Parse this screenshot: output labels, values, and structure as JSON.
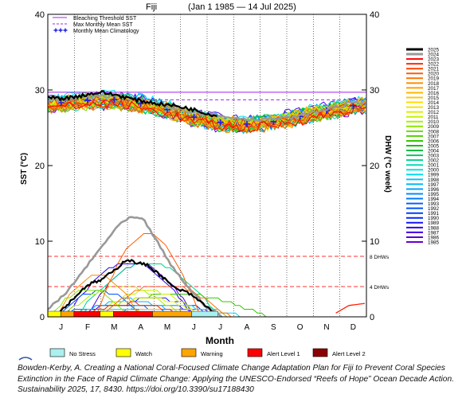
{
  "chart_data": {
    "type": "line",
    "title": {
      "location": "Fiji",
      "date_range": "(Jan 1 1985 — 14 Jul 2025)"
    },
    "ylabel_left": "SST (°C)",
    "ylabel_right": "DHW (°C week)",
    "xlabel": "Month",
    "x_ticks": [
      "J",
      "F",
      "M",
      "A",
      "M",
      "J",
      "J",
      "A",
      "S",
      "O",
      "N",
      "D"
    ],
    "ylim": [
      0,
      40
    ],
    "y_ticks": [
      0,
      10,
      20,
      30,
      40
    ],
    "grid": "vertical dotted lines at month boundaries",
    "thresholds": {
      "bleaching_threshold_sst": 29.7,
      "max_monthly_mean_sst": 28.7,
      "dhw_8_label": "8 DHWs",
      "dhw_8_value": 8,
      "dhw_4_label": "4 DHWs",
      "dhw_4_value": 4
    },
    "legend": [
      {
        "label": "Bleaching Threshold SST",
        "color": "#a020f0",
        "style": "solid"
      },
      {
        "label": "Max Monthly Mean SST",
        "color": "#a020f0",
        "style": "dashed"
      },
      {
        "label": "Monthly Mean Climatology",
        "color": "#2020e0",
        "style": "plus"
      }
    ],
    "monthly_mean_climatology": [
      28.3,
      28.6,
      28.7,
      28.2,
      27.4,
      26.4,
      25.7,
      25.5,
      25.8,
      26.5,
      27.3,
      27.9
    ],
    "years": [
      2025,
      2024,
      2023,
      2022,
      2021,
      2020,
      2019,
      2018,
      2017,
      2016,
      2015,
      2014,
      2013,
      2012,
      2011,
      2010,
      2009,
      2008,
      2007,
      2006,
      2005,
      2004,
      2003,
      2002,
      2001,
      2000,
      1999,
      1998,
      1997,
      1996,
      1995,
      1994,
      1993,
      1992,
      1991,
      1990,
      1989,
      1988,
      1987,
      1986,
      1985
    ],
    "year_colors": [
      "#000000",
      "#999999",
      "#ff0000",
      "#ff2a00",
      "#ff4400",
      "#ff5c00",
      "#ff7400",
      "#ff8c00",
      "#ffa000",
      "#ffb400",
      "#ffc800",
      "#ffdc00",
      "#f0e600",
      "#dcf000",
      "#c8f000",
      "#aaf000",
      "#8ce600",
      "#6edc00",
      "#50d200",
      "#32c800",
      "#14be14",
      "#00be3c",
      "#00c864",
      "#00d28c",
      "#00dcb4",
      "#00e6dc",
      "#00dcf0",
      "#00c8f5",
      "#00b4fa",
      "#00a0ff",
      "#008cff",
      "#0078ff",
      "#0064ff",
      "#0050ff",
      "#003cff",
      "#0028ff",
      "#1414ff",
      "#2800f0",
      "#3c00e6",
      "#5000dc",
      "#6400d2"
    ],
    "year_2025_sst": {
      "days": [
        0,
        20,
        40,
        60,
        80,
        100,
        120,
        140,
        160,
        180,
        195
      ],
      "values": [
        29.0,
        28.9,
        29.3,
        29.7,
        29.3,
        28.7,
        28.3,
        28.0,
        27.6,
        27.0,
        26.5
      ]
    },
    "year_2024_sst": {
      "days": [
        0,
        40,
        80,
        120,
        160,
        200,
        240,
        280,
        320,
        365
      ],
      "values": [
        28.6,
        29.1,
        29.2,
        28.3,
        27.3,
        26.5,
        26.1,
        26.3,
        27.5,
        28.6
      ]
    },
    "year_2025_dhw": {
      "days": [
        0,
        15,
        30,
        45,
        60,
        75,
        90,
        100,
        115,
        130,
        145,
        160,
        175,
        190
      ],
      "values": [
        0,
        0.8,
        2.5,
        4.2,
        4.8,
        6.0,
        7.6,
        7.2,
        6.8,
        5.4,
        3.8,
        3.2,
        2.0,
        0.6
      ]
    },
    "year_2024_dhw": {
      "days": [
        0,
        20,
        40,
        60,
        80,
        95,
        110,
        125,
        140,
        160,
        180,
        200
      ],
      "values": [
        1.0,
        3.0,
        6.0,
        9.0,
        12.0,
        13.2,
        12.8,
        10.0,
        7.0,
        4.0,
        1.5,
        0
      ]
    },
    "year_2023_dhw": {
      "days": [
        330,
        345,
        365
      ],
      "values": [
        0.5,
        1.5,
        1.8
      ]
    },
    "alert_legend": [
      {
        "label": "No Stress",
        "color": "#aaf0f0"
      },
      {
        "label": "Watch",
        "color": "#ffff00"
      },
      {
        "label": "Warning",
        "color": "#ffa500"
      },
      {
        "label": "Alert Level 1",
        "color": "#ff0000"
      },
      {
        "label": "Alert Level 2",
        "color": "#8b0000"
      }
    ],
    "alert_bar_2025": [
      {
        "from_day": 0,
        "to_day": 15,
        "level": "Watch"
      },
      {
        "from_day": 15,
        "to_day": 30,
        "level": "Warning"
      },
      {
        "from_day": 30,
        "to_day": 120,
        "level": "Alert Level 1"
      },
      {
        "from_day": 60,
        "to_day": 75,
        "level": "Watch"
      },
      {
        "from_day": 120,
        "to_day": 165,
        "level": "Warning"
      },
      {
        "from_day": 165,
        "to_day": 195,
        "level": "No Stress"
      }
    ]
  },
  "caption": "Bowden-Kerby, A. Creating a National Coral-Focused Climate Change Adaptation Plan for Fiji to Prevent Coral Species Extinction in the Face of Rapid Climate Change: Applying the UNESCO-Endorsed “Reefs of Hope” Ocean Decade Action. Sustainability 2025, 17, 8430. https://doi.org/10.3390/su17188430"
}
